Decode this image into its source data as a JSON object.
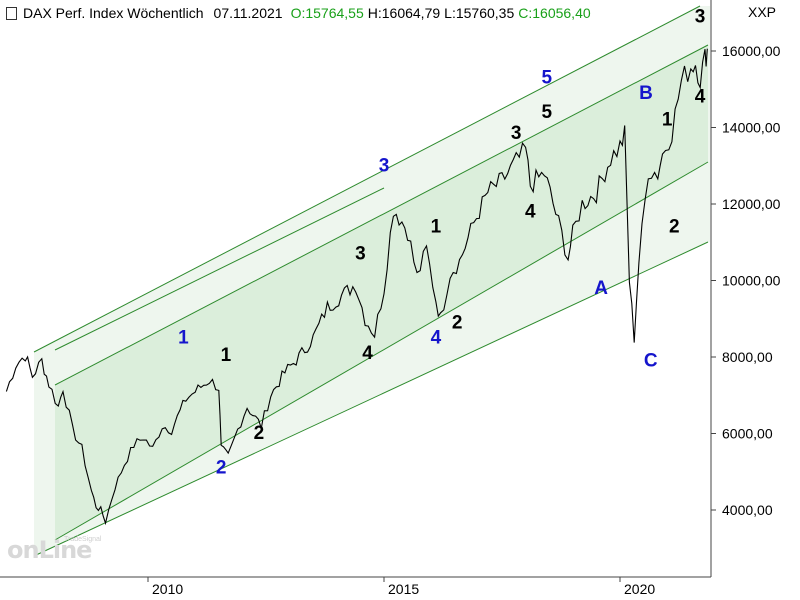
{
  "header": {
    "title": "DAX Perf. Index Wöchentlich",
    "date": "07.11.2021",
    "open_label": "O:",
    "open": "15764,55",
    "high_label": "H:",
    "high": "16064,79",
    "low_label": "L:",
    "low": "15760,35",
    "close_label": "C:",
    "close": "16056,40",
    "open_color": "#19a019",
    "close_color": "#19a019",
    "right_label": "XXP"
  },
  "watermark": {
    "brand": "onLine",
    "subtitle": "TradeSignal"
  },
  "chart_data": {
    "type": "line",
    "title": "",
    "xlabel": "",
    "ylabel": "",
    "xlim": [
      2007.0,
      2021.9
    ],
    "ylim": [
      2300,
      17200
    ],
    "x_ticks": [
      2010,
      2015,
      2020
    ],
    "x_tick_labels": [
      "2010",
      "2015",
      "2020"
    ],
    "y_ticks": [
      4000,
      6000,
      8000,
      10000,
      12000,
      14000,
      16000
    ],
    "y_tick_labels": [
      "4000,00",
      "6000,00",
      "8000,00",
      "10000,00",
      "12000,00",
      "14000,00",
      "16000,00"
    ],
    "grid": false,
    "series": [
      {
        "values_x": [
          2007.0,
          2007.2,
          2007.4,
          2007.55,
          2007.75,
          2007.9,
          2008.1,
          2008.2,
          2008.4,
          2008.6,
          2008.8,
          2008.9,
          2009.0,
          2009.1,
          2009.3,
          2009.5,
          2009.7,
          2009.9,
          2010.1,
          2010.3,
          2010.5,
          2010.8,
          2011.0,
          2011.3,
          2011.5,
          2011.55,
          2011.7,
          2011.9,
          2012.1,
          2012.4,
          2012.6,
          2012.9,
          2013.2,
          2013.5,
          2013.8,
          2014.1,
          2014.4,
          2014.6,
          2014.8,
          2015.0,
          2015.2,
          2015.5,
          2015.7,
          2015.9,
          2016.1,
          2016.2,
          2016.4,
          2016.6,
          2016.9,
          2017.2,
          2017.5,
          2017.8,
          2018.0,
          2018.1,
          2018.4,
          2018.7,
          2018.9,
          2019.0,
          2019.2,
          2019.5,
          2019.8,
          2020.0,
          2020.1,
          2020.2,
          2020.3,
          2020.4,
          2020.6,
          2020.8,
          2020.9,
          2021.1,
          2021.3,
          2021.5,
          2021.6,
          2021.7,
          2021.8,
          2021.85
        ],
        "values_y": [
          7100,
          7800,
          8050,
          7500,
          7900,
          7300,
          6700,
          7200,
          6100,
          5600,
          4500,
          4100,
          4000,
          3700,
          4600,
          5200,
          5700,
          5900,
          5600,
          6200,
          6100,
          6900,
          7100,
          7400,
          7200,
          5600,
          5400,
          6100,
          6700,
          6200,
          7000,
          7600,
          8000,
          8500,
          9300,
          9600,
          9900,
          9000,
          8600,
          9800,
          11900,
          11300,
          10100,
          10800,
          9500,
          9000,
          10200,
          10500,
          11500,
          12300,
          12600,
          13100,
          13400,
          12500,
          12800,
          11500,
          10600,
          11200,
          12000,
          12300,
          13200,
          13500,
          13800,
          10000,
          8500,
          10500,
          12900,
          12800,
          13300,
          13900,
          15200,
          15600,
          15700,
          15300,
          15800,
          16060
        ]
      }
    ],
    "annotations": [
      {
        "text": "1",
        "color": "#1515cc",
        "x": 2010.75,
        "y": 8350
      },
      {
        "text": "1",
        "color": "#000000",
        "x": 2011.65,
        "y": 7900
      },
      {
        "text": "2",
        "color": "#1515cc",
        "x": 2011.55,
        "y": 4950
      },
      {
        "text": "2",
        "color": "#000000",
        "x": 2012.35,
        "y": 5850
      },
      {
        "text": "3",
        "color": "#1515cc",
        "x": 2015.0,
        "y": 12850
      },
      {
        "text": "3",
        "color": "#000000",
        "x": 2014.5,
        "y": 10550
      },
      {
        "text": "4",
        "color": "#000000",
        "x": 2014.65,
        "y": 7950
      },
      {
        "text": "4",
        "color": "#1515cc",
        "x": 2016.1,
        "y": 8350
      },
      {
        "text": "2",
        "color": "#000000",
        "x": 2016.55,
        "y": 8750
      },
      {
        "text": "1",
        "color": "#000000",
        "x": 2016.1,
        "y": 11250
      },
      {
        "text": "3",
        "color": "#000000",
        "x": 2017.8,
        "y": 13700
      },
      {
        "text": "4",
        "color": "#000000",
        "x": 2018.1,
        "y": 11650
      },
      {
        "text": "5",
        "color": "#1515cc",
        "x": 2018.45,
        "y": 15150
      },
      {
        "text": "5",
        "color": "#000000",
        "x": 2018.45,
        "y": 14250
      },
      {
        "text": "A",
        "color": "#1515cc",
        "x": 2019.6,
        "y": 9650
      },
      {
        "text": "B",
        "color": "#1515cc",
        "x": 2020.55,
        "y": 14750
      },
      {
        "text": "1",
        "color": "#000000",
        "x": 2021.0,
        "y": 14050
      },
      {
        "text": "2",
        "color": "#000000",
        "x": 2021.15,
        "y": 11250
      },
      {
        "text": "C",
        "color": "#1515cc",
        "x": 2020.65,
        "y": 7750
      },
      {
        "text": "3",
        "color": "#000000",
        "x": 2022.3,
        "y": 16750
      },
      {
        "text": "4",
        "color": "#000000",
        "x": 2022.4,
        "y": 14650
      }
    ],
    "channel_color": "#2e8b2e",
    "channel_fill": "#dbeedb",
    "outer_fill": "#eef6ee"
  }
}
